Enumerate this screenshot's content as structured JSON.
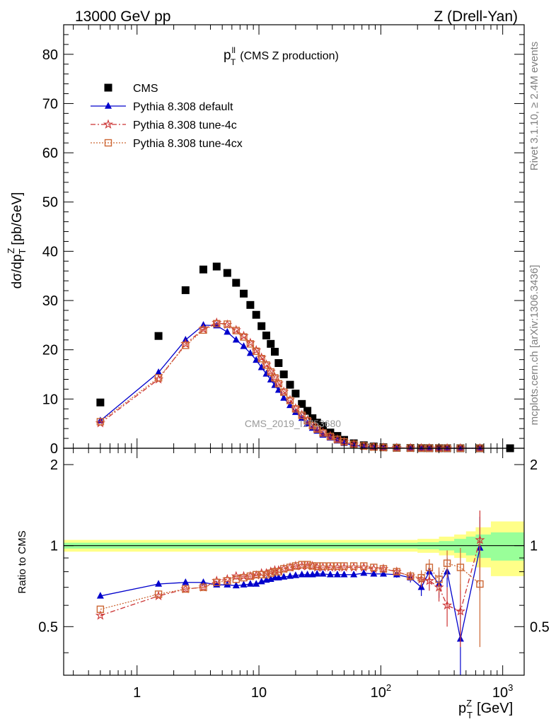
{
  "header": {
    "left": "13000 GeV pp",
    "right": "Z (Drell-Yan)"
  },
  "side_labels": {
    "rivet": "Rivet 3.1.10, ≥ 2.4M events",
    "mcplots": "mcplots.cern.ch [arXiv:1306.3436]"
  },
  "chart_data": [
    {
      "type": "scatter",
      "title": "(CMS Z production)",
      "title_symbol": "p",
      "title_sup": "ll",
      "title_sub": "T",
      "ylabel": "dσ/dp",
      "ylabel_sup": "Z",
      "ylabel_sub": "T",
      "ylabel_unit": "[pb/GeV]",
      "xlabel": "[GeV]",
      "xlabel_symbol": "p",
      "xlabel_sup": "Z",
      "xlabel_sub": "T",
      "x_scale": "log",
      "xlim": [
        0.25,
        1500
      ],
      "ylim": [
        0,
        86
      ],
      "yticks": [
        0,
        10,
        20,
        30,
        40,
        50,
        60,
        70,
        80
      ],
      "xticks_major": [
        {
          "value": 1,
          "label": "1"
        },
        {
          "value": 10,
          "label": "10"
        },
        {
          "value": 100,
          "label": "10",
          "sup": "2"
        },
        {
          "value": 1000,
          "label": "10",
          "sup": "3"
        }
      ],
      "watermark": "CMS_2019_I1753680",
      "legend_position": "top-left",
      "series": [
        {
          "name": "CMS",
          "color": "#000000",
          "marker": "square",
          "line": "none",
          "x": [
            0.5,
            1.5,
            2.5,
            3.5,
            4.5,
            5.5,
            6.5,
            7.5,
            8.5,
            9.5,
            10.5,
            11.5,
            12.5,
            13.5,
            14.5,
            16,
            18,
            20,
            22.5,
            25,
            27.5,
            30,
            33.5,
            38.5,
            44,
            50,
            60,
            72.5,
            87.5,
            105,
            135,
            175,
            215,
            250,
            300,
            350,
            450,
            650,
            1150
          ],
          "y": [
            9.3,
            22.8,
            32.1,
            36.3,
            36.9,
            35.6,
            33.6,
            31.4,
            29.1,
            27.1,
            24.8,
            22.9,
            21.2,
            19.6,
            17.3,
            15.0,
            12.9,
            11.1,
            9.0,
            7.6,
            6.1,
            5.2,
            4.5,
            3.2,
            2.5,
            1.7,
            1.0,
            0.6,
            0.35,
            0.2,
            0.1,
            0.06,
            0.04,
            0.03,
            0.02,
            0.015,
            0.01,
            0.004,
            0.0005
          ]
        },
        {
          "name": "Pythia 8.308 default",
          "color": "#0000cc",
          "marker": "triangle",
          "line": "solid",
          "x": [
            0.5,
            1.5,
            2.5,
            3.5,
            4.5,
            5.5,
            6.5,
            7.5,
            8.5,
            9.5,
            10.5,
            11.5,
            12.5,
            13.5,
            14.5,
            16,
            18,
            20,
            22.5,
            25,
            27.5,
            30,
            33.5,
            38.5,
            44,
            50,
            60,
            72.5,
            87.5,
            105,
            135,
            175,
            215,
            250,
            300,
            350,
            450,
            650
          ],
          "y": [
            5.6,
            15.4,
            22.0,
            25.0,
            24.9,
            23.6,
            22.0,
            20.7,
            19.3,
            17.9,
            16.4,
            15.1,
            13.9,
            12.8,
            11.8,
            10.2,
            8.7,
            7.3,
            6.1,
            5.0,
            4.1,
            3.5,
            2.7,
            2.1,
            1.5,
            1.0,
            0.6,
            0.35,
            0.2,
            0.12,
            0.06,
            0.03,
            0.02,
            0.013,
            0.008,
            0.005,
            0.003,
            0.002
          ]
        },
        {
          "name": "Pythia 8.308 tune-4c",
          "color": "#cc3333",
          "marker": "star",
          "line": "dashdot",
          "x": [
            0.5,
            1.5,
            2.5,
            3.5,
            4.5,
            5.5,
            6.5,
            7.5,
            8.5,
            9.5,
            10.5,
            11.5,
            12.5,
            13.5,
            14.5,
            16,
            18,
            20,
            22.5,
            25,
            27.5,
            30,
            33.5,
            38.5,
            44,
            50,
            60,
            72.5,
            87.5,
            105,
            135,
            175,
            215,
            250,
            300,
            350,
            450,
            650
          ],
          "y": [
            5.1,
            14.0,
            21.2,
            24.2,
            25.5,
            25.1,
            24.0,
            22.8,
            21.4,
            19.9,
            18.4,
            17.0,
            15.6,
            14.4,
            13.2,
            11.5,
            9.8,
            8.1,
            6.8,
            5.7,
            4.7,
            3.9,
            3.2,
            2.5,
            1.8,
            1.3,
            0.8,
            0.45,
            0.25,
            0.15,
            0.08,
            0.04,
            0.025,
            0.015,
            0.01,
            0.007,
            0.004,
            0.002
          ]
        },
        {
          "name": "Pythia 8.308 tune-4cx",
          "color": "#cc6633",
          "marker": "open-square",
          "line": "dotted",
          "x": [
            0.5,
            1.5,
            2.5,
            3.5,
            4.5,
            5.5,
            6.5,
            7.5,
            8.5,
            9.5,
            10.5,
            11.5,
            12.5,
            13.5,
            14.5,
            16,
            18,
            20,
            22.5,
            25,
            27.5,
            30,
            33.5,
            38.5,
            44,
            50,
            60,
            72.5,
            87.5,
            105,
            135,
            175,
            215,
            250,
            300,
            350,
            450,
            650
          ],
          "y": [
            5.4,
            14.3,
            20.9,
            24.0,
            25.3,
            25.2,
            23.9,
            22.6,
            21.2,
            19.7,
            18.2,
            16.9,
            15.5,
            14.3,
            13.1,
            11.4,
            9.7,
            8.0,
            6.7,
            5.6,
            4.6,
            3.9,
            3.1,
            2.4,
            1.8,
            1.3,
            0.8,
            0.45,
            0.25,
            0.15,
            0.08,
            0.04,
            0.025,
            0.015,
            0.01,
            0.007,
            0.004,
            0.002
          ]
        }
      ]
    },
    {
      "type": "line",
      "ylabel": "Ratio to CMS",
      "x_scale": "log",
      "xlim": [
        0.25,
        1500
      ],
      "ylim": [
        0.33,
        2.3
      ],
      "yticks": [
        {
          "value": 0.5,
          "label": "0.5"
        },
        {
          "value": 1,
          "label": "1"
        },
        {
          "value": 2,
          "label": "2"
        }
      ],
      "reference_line": 1,
      "uncertainty_bands": {
        "x_edges": [
          0.25,
          200,
          300,
          400,
          500,
          600,
          800,
          1500
        ],
        "inner": [
          0.025,
          0.03,
          0.04,
          0.06,
          0.08,
          0.1,
          0.12,
          0.12
        ],
        "outer": [
          0.05,
          0.06,
          0.08,
          0.1,
          0.13,
          0.17,
          0.23,
          0.23
        ],
        "inner_color": "#99ff99",
        "outer_color": "#ffff88"
      },
      "series": [
        {
          "name": "Pythia 8.308 default",
          "color": "#0000cc",
          "marker": "triangle",
          "line": "solid",
          "x": [
            0.5,
            1.5,
            2.5,
            3.5,
            4.5,
            5.5,
            6.5,
            7.5,
            8.5,
            9.5,
            10.5,
            11.5,
            12.5,
            13.5,
            14.5,
            16,
            18,
            20,
            22.5,
            25,
            27.5,
            30,
            33.5,
            38.5,
            44,
            50,
            60,
            72.5,
            87.5,
            105,
            135,
            175,
            215,
            250,
            300,
            350,
            450,
            650
          ],
          "y": [
            0.65,
            0.72,
            0.73,
            0.73,
            0.715,
            0.715,
            0.71,
            0.715,
            0.72,
            0.72,
            0.735,
            0.745,
            0.75,
            0.76,
            0.76,
            0.765,
            0.77,
            0.775,
            0.78,
            0.78,
            0.78,
            0.785,
            0.785,
            0.78,
            0.78,
            0.78,
            0.78,
            0.79,
            0.785,
            0.785,
            0.78,
            0.76,
            0.7,
            0.8,
            0.72,
            0.8,
            0.45,
            0.98
          ],
          "err": [
            0.005,
            0.005,
            0.005,
            0.005,
            0.005,
            0.005,
            0.005,
            0.005,
            0.005,
            0.005,
            0.005,
            0.005,
            0.005,
            0.005,
            0.005,
            0.005,
            0.005,
            0.005,
            0.005,
            0.005,
            0.005,
            0.005,
            0.005,
            0.005,
            0.005,
            0.005,
            0.005,
            0.008,
            0.01,
            0.012,
            0.02,
            0.03,
            0.05,
            0.06,
            0.08,
            0.1,
            0.15,
            0.3
          ]
        },
        {
          "name": "Pythia 8.308 tune-4c",
          "color": "#cc3333",
          "marker": "star",
          "line": "dashdot",
          "x": [
            0.5,
            1.5,
            2.5,
            3.5,
            4.5,
            5.5,
            6.5,
            7.5,
            8.5,
            9.5,
            10.5,
            11.5,
            12.5,
            13.5,
            14.5,
            16,
            18,
            20,
            22.5,
            25,
            27.5,
            30,
            33.5,
            38.5,
            44,
            50,
            60,
            72.5,
            87.5,
            105,
            135,
            175,
            215,
            250,
            300,
            350,
            450,
            650
          ],
          "y": [
            0.55,
            0.65,
            0.69,
            0.7,
            0.74,
            0.75,
            0.77,
            0.77,
            0.77,
            0.775,
            0.79,
            0.79,
            0.8,
            0.81,
            0.81,
            0.82,
            0.83,
            0.84,
            0.84,
            0.84,
            0.84,
            0.83,
            0.83,
            0.83,
            0.83,
            0.83,
            0.83,
            0.83,
            0.82,
            0.82,
            0.8,
            0.77,
            0.75,
            0.74,
            0.7,
            0.6,
            0.57,
            1.05
          ],
          "err": [
            0.005,
            0.005,
            0.005,
            0.005,
            0.005,
            0.005,
            0.005,
            0.005,
            0.005,
            0.005,
            0.005,
            0.005,
            0.005,
            0.005,
            0.005,
            0.005,
            0.005,
            0.005,
            0.005,
            0.005,
            0.005,
            0.005,
            0.005,
            0.005,
            0.005,
            0.005,
            0.005,
            0.008,
            0.01,
            0.012,
            0.02,
            0.03,
            0.05,
            0.06,
            0.08,
            0.1,
            0.15,
            0.3
          ]
        },
        {
          "name": "Pythia 8.308 tune-4cx",
          "color": "#cc6633",
          "marker": "open-square",
          "line": "dotted",
          "x": [
            0.5,
            1.5,
            2.5,
            3.5,
            4.5,
            5.5,
            6.5,
            7.5,
            8.5,
            9.5,
            10.5,
            11.5,
            12.5,
            13.5,
            14.5,
            16,
            18,
            20,
            22.5,
            25,
            27.5,
            30,
            33.5,
            38.5,
            44,
            50,
            60,
            72.5,
            87.5,
            105,
            135,
            175,
            215,
            250,
            300,
            350,
            450,
            650
          ],
          "y": [
            0.58,
            0.66,
            0.69,
            0.7,
            0.73,
            0.74,
            0.75,
            0.76,
            0.77,
            0.78,
            0.78,
            0.78,
            0.79,
            0.8,
            0.8,
            0.82,
            0.83,
            0.84,
            0.85,
            0.85,
            0.84,
            0.84,
            0.84,
            0.84,
            0.84,
            0.84,
            0.84,
            0.84,
            0.83,
            0.82,
            0.8,
            0.77,
            0.76,
            0.83,
            0.75,
            0.86,
            0.83,
            0.72
          ],
          "err": [
            0.005,
            0.005,
            0.005,
            0.005,
            0.005,
            0.005,
            0.005,
            0.005,
            0.005,
            0.005,
            0.005,
            0.005,
            0.005,
            0.005,
            0.005,
            0.005,
            0.005,
            0.005,
            0.005,
            0.005,
            0.005,
            0.005,
            0.005,
            0.005,
            0.005,
            0.005,
            0.005,
            0.008,
            0.01,
            0.012,
            0.02,
            0.03,
            0.05,
            0.06,
            0.08,
            0.1,
            0.15,
            0.3
          ]
        }
      ]
    }
  ]
}
